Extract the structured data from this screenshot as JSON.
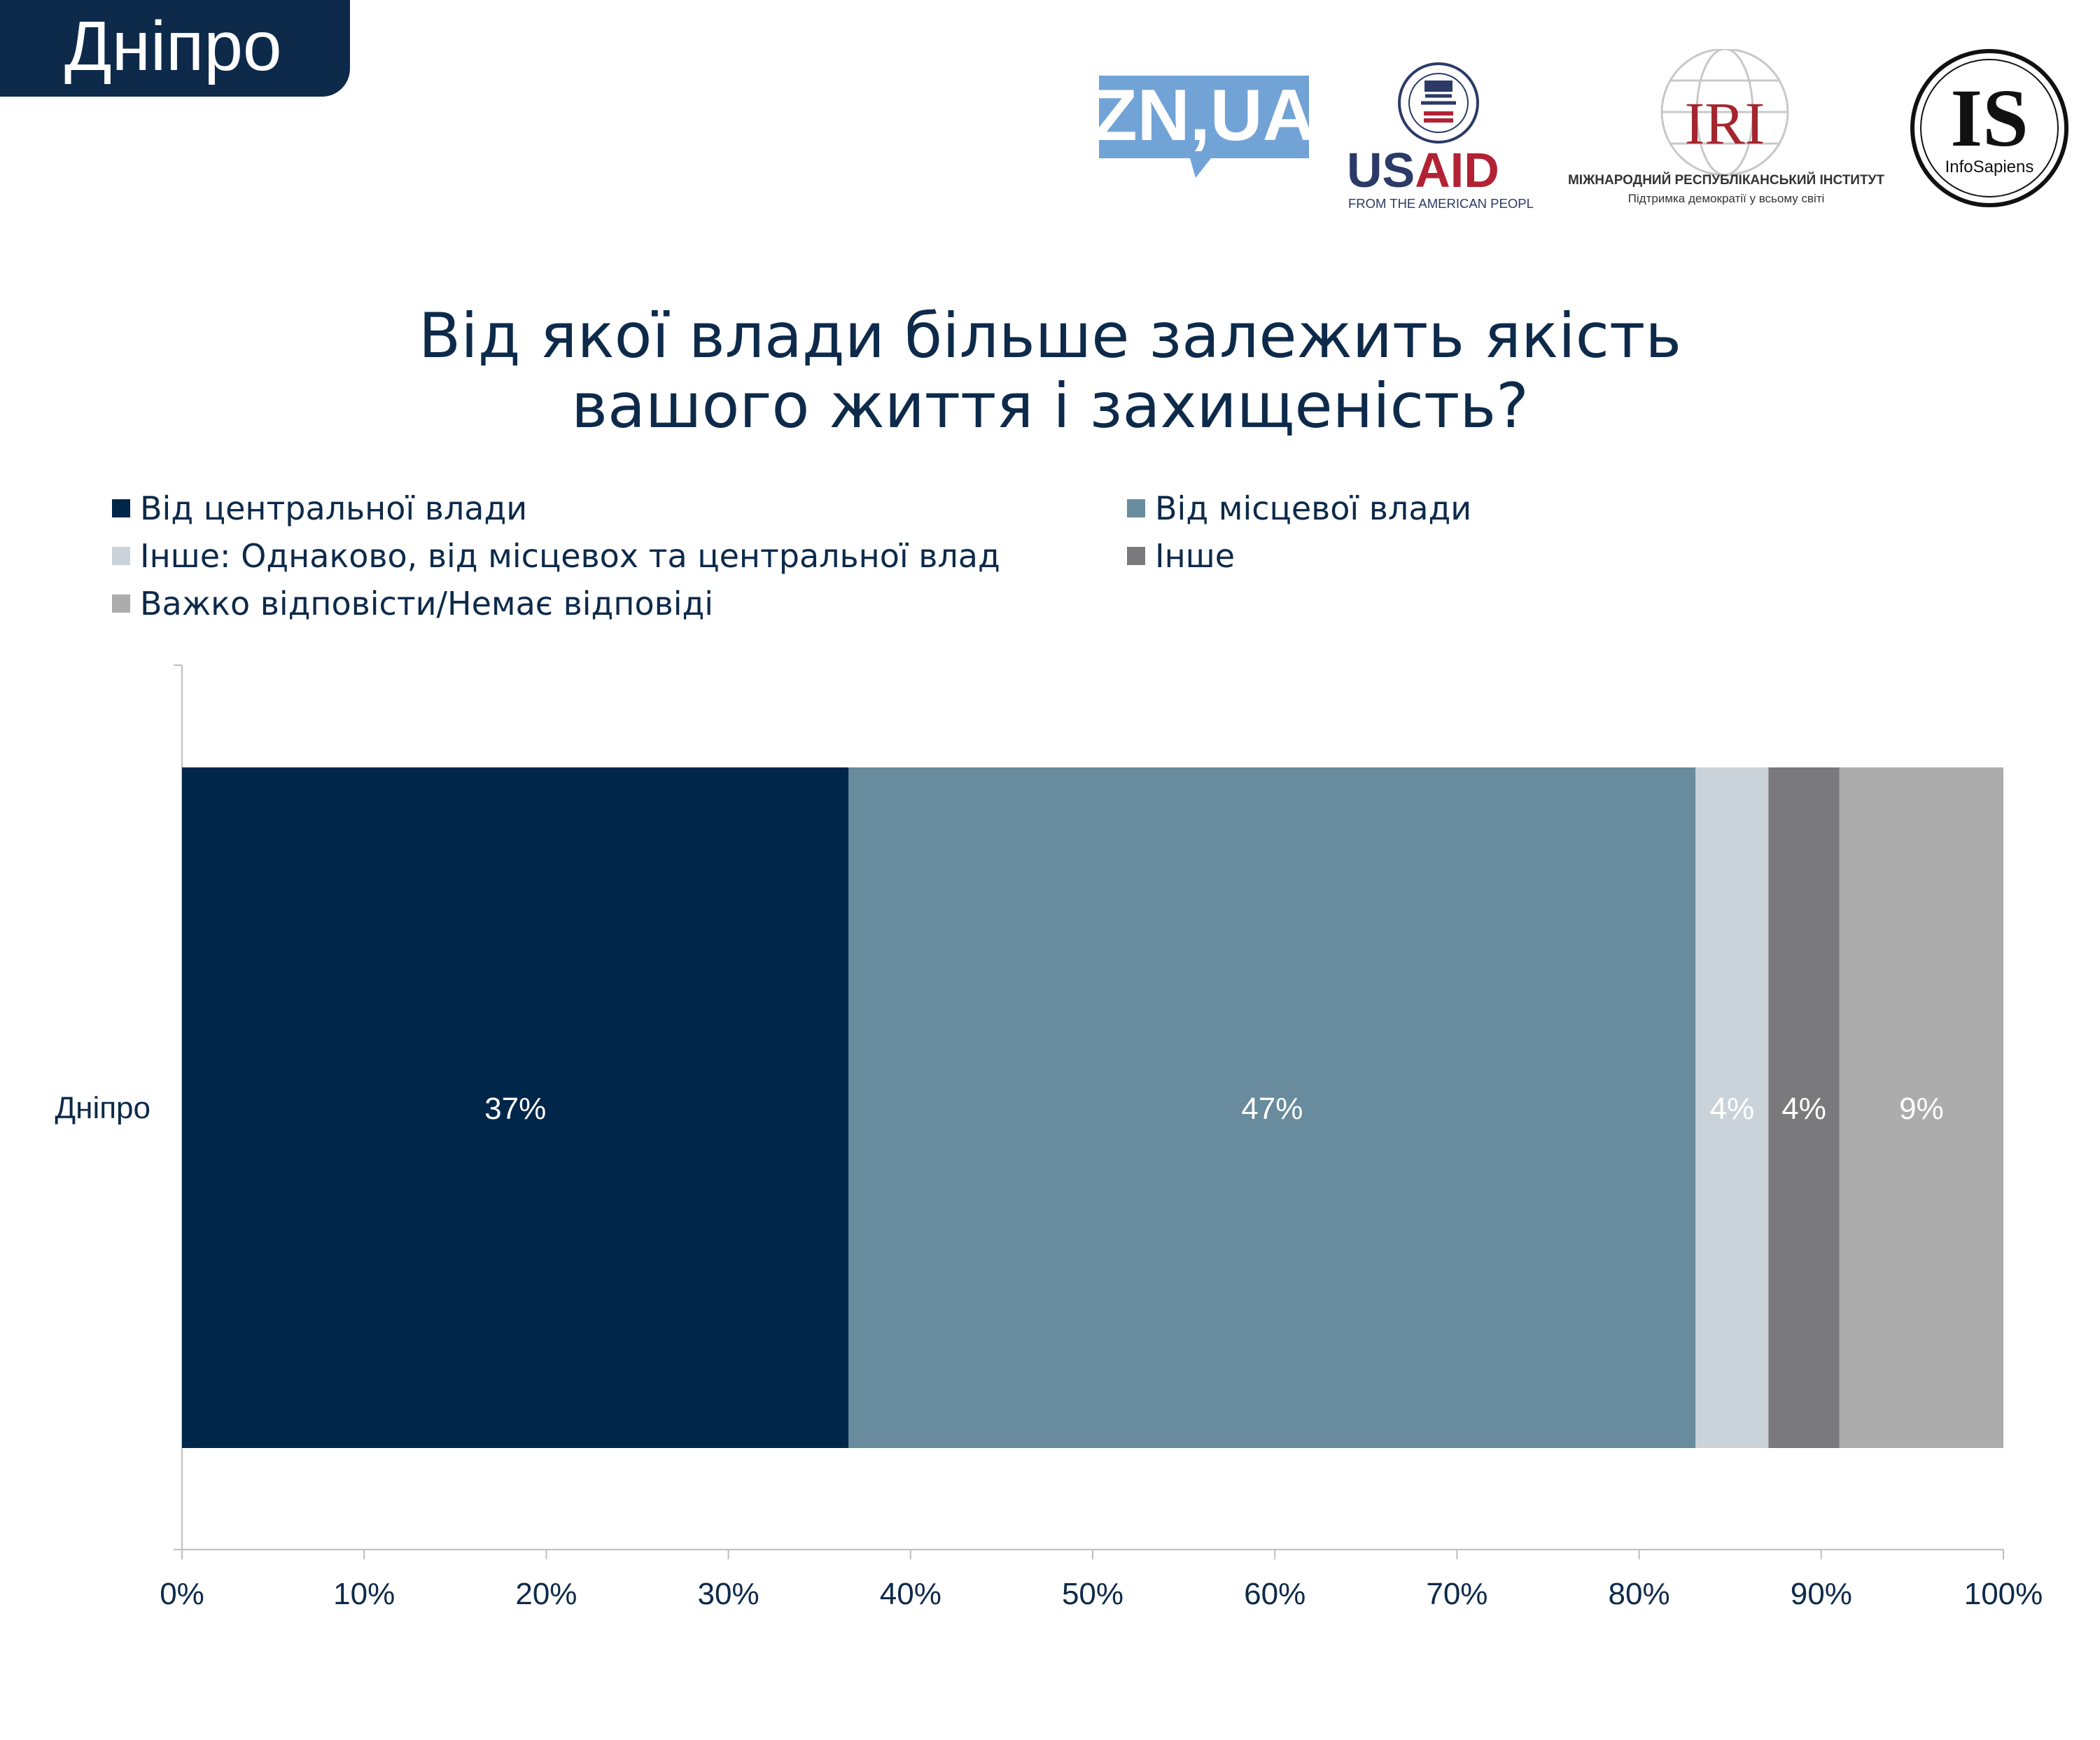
{
  "header": {
    "city_tab": "Дніпро"
  },
  "logos": {
    "zn": "ZN,UA",
    "usaid": {
      "name": "USAID",
      "tagline": "FROM THE AMERICAN PEOPLE"
    },
    "iri": {
      "name": "IRI",
      "full_name": "МІЖНАРОДНИЙ РЕСПУБЛІКАНСЬКИЙ ІНСТИТУТ",
      "tagline": "Підтримка демократії у всьому світі"
    },
    "infosapiens": {
      "mark": "IS",
      "name": "InfoSapiens"
    }
  },
  "colors": {
    "brand_navy": "#0d2a4a",
    "central": "#002649",
    "local": "#688b9d",
    "equal": "#cbd3da",
    "other": "#7a7a7c",
    "hard": "#acacad",
    "usaid_blue": "#2b3a67",
    "usaid_red": "#b22234",
    "iri_red": "#a3262e",
    "zn_blue": "#72a3d6"
  },
  "chart_data": {
    "type": "bar",
    "orientation": "horizontal",
    "stacked": true,
    "title": "Від якої влади більше залежить якість вашого життя і захищеність?",
    "title_lines": [
      "Від якої влади більше залежить якість",
      "вашого життя і захищеність?"
    ],
    "categories": [
      "Дніпро"
    ],
    "series": [
      {
        "name": "Від центральної влади",
        "values": [
          36.6
        ],
        "label": "37%",
        "color": "#002649"
      },
      {
        "name": "Від місцевої влади",
        "values": [
          46.5
        ],
        "label": "47%",
        "color": "#688b9d"
      },
      {
        "name": "Інше: Однаково, від місцевох та центральної влад",
        "values": [
          4.0
        ],
        "label": "4%",
        "color": "#cbd3da"
      },
      {
        "name": "Інше",
        "values": [
          3.9
        ],
        "label": "4%",
        "color": "#7a7a7c"
      },
      {
        "name": "Важко відповісти/Немає відповіді",
        "values": [
          9.0
        ],
        "label": "9%",
        "color": "#acacad"
      }
    ],
    "legend_order": [
      0,
      1,
      2,
      3,
      4
    ],
    "legend_position": "top",
    "xlim": [
      0,
      100
    ],
    "x_ticks": [
      0,
      10,
      20,
      30,
      40,
      50,
      60,
      70,
      80,
      90,
      100
    ],
    "x_tick_labels": [
      "0%",
      "10%",
      "20%",
      "30%",
      "40%",
      "50%",
      "60%",
      "70%",
      "80%",
      "90%",
      "100%"
    ],
    "xlabel": "",
    "ylabel": "",
    "grid": false
  }
}
